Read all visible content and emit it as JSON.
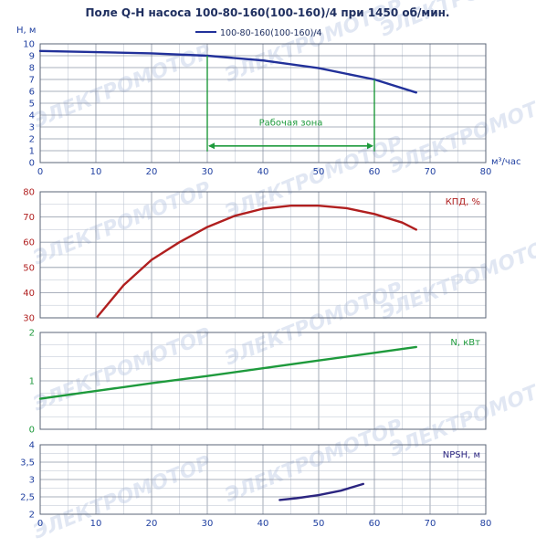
{
  "title": "Поле Q-H насоса 100-80-160(100-160)/4 при 1450 об/мин.",
  "legend": "100-80-160(100-160)/4",
  "watermark": "ЭЛЕКТРОМОТОР",
  "colors": {
    "head": "#22319a",
    "eff": "#b01f1f",
    "power": "#1e9a3c",
    "npsh": "#2b2580",
    "zone": "#1e9a3c",
    "grid": "#b9c2cf",
    "axis": "#1f3fa0"
  },
  "x_unit": "м³/час",
  "chart_data": [
    {
      "type": "line",
      "id": "head",
      "ylabel": "Н, м",
      "xlim": [
        0,
        80
      ],
      "ylim": [
        0,
        10
      ],
      "yticks": [
        0,
        1,
        2,
        3,
        4,
        5,
        6,
        7,
        8,
        9,
        10
      ],
      "xticks": [
        0,
        10,
        20,
        30,
        40,
        50,
        60,
        70,
        80
      ],
      "series": [
        {
          "name": "100-80-160(100-160)/4",
          "x": [
            0,
            10,
            20,
            30,
            40,
            50,
            60,
            67.5
          ],
          "y": [
            9.4,
            9.3,
            9.2,
            9.0,
            8.6,
            7.95,
            7.0,
            5.9
          ]
        }
      ],
      "annotation": {
        "label": "Рабочая зона",
        "x_from": 30,
        "x_to": 60
      }
    },
    {
      "type": "line",
      "id": "eff",
      "ylabel": "КПД, %",
      "xlim": [
        0,
        80
      ],
      "ylim": [
        30,
        80
      ],
      "yticks": [
        30,
        40,
        50,
        60,
        70,
        80
      ],
      "series": [
        {
          "x": [
            10.3,
            15,
            20,
            25,
            30,
            35,
            40,
            45,
            50,
            55,
            60,
            65,
            67.5
          ],
          "y": [
            30.5,
            43,
            53,
            60,
            66,
            70.5,
            73.3,
            74.5,
            74.5,
            73.5,
            71.2,
            67.8,
            65
          ]
        }
      ]
    },
    {
      "type": "line",
      "id": "power",
      "ylabel": "N, кВт",
      "xlim": [
        0,
        80
      ],
      "ylim": [
        0,
        2
      ],
      "yticks": [
        0,
        1,
        2
      ],
      "series": [
        {
          "x": [
            0,
            10,
            20,
            30,
            40,
            50,
            60,
            67.5
          ],
          "y": [
            0.63,
            0.79,
            0.95,
            1.1,
            1.26,
            1.42,
            1.58,
            1.7
          ]
        }
      ]
    },
    {
      "type": "line",
      "id": "npsh",
      "ylabel": "NPSH, м",
      "xlim": [
        0,
        80
      ],
      "ylim": [
        2,
        4
      ],
      "yticks": [
        2,
        2.5,
        3,
        3.5,
        4
      ],
      "ytick_labels": [
        "2",
        "2,5",
        "3",
        "3,5",
        "4"
      ],
      "xticks": [
        0,
        10,
        20,
        30,
        40,
        50,
        60,
        70,
        80
      ],
      "series": [
        {
          "x": [
            43,
            46,
            50,
            54,
            58
          ],
          "y": [
            2.41,
            2.46,
            2.55,
            2.68,
            2.87
          ]
        }
      ]
    }
  ]
}
